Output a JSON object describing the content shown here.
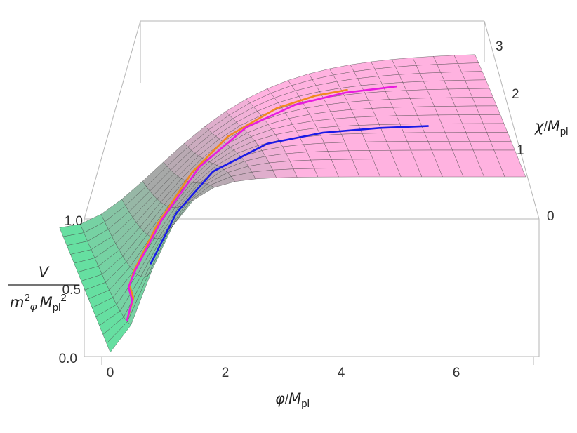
{
  "chart_data": {
    "type": "surface3d",
    "x_axis": {
      "var": "φ",
      "unit_main": "M",
      "unit_sub": "pl",
      "ticks": [
        "0",
        "2",
        "4",
        "6"
      ],
      "tick_values": [
        0,
        2,
        4,
        6
      ],
      "range": [
        0,
        7.2
      ]
    },
    "y_axis": {
      "var": "χ",
      "unit_main": "M",
      "unit_sub": "pl",
      "ticks": [
        "0",
        "1",
        "2",
        "3"
      ],
      "tick_values": [
        0,
        1,
        2,
        3
      ],
      "range": [
        -0.3,
        3.4
      ]
    },
    "z_axis": {
      "num_var": "V",
      "den_m": "m",
      "den_m_sup": "2",
      "den_phi": "φ",
      "den_M": "M",
      "den_pl": "pl",
      "den_sup": "2",
      "ticks": [
        "0.0",
        "0.5",
        "1.0"
      ],
      "tick_values": [
        0.0,
        0.5,
        1.0
      ],
      "range": [
        0,
        1.25
      ]
    },
    "surface": {
      "description_formula": "V = tanh(phi/c)^2 with c = 1 + 0.45*chi",
      "mesh_phi_steps": 20,
      "mesh_chi_steps": 14,
      "color_low": "#5ee6a0",
      "color_mid": "#a8a8a8",
      "color_high": "#ffb2e0",
      "mesh_color": "#444444"
    },
    "trajectories": [
      {
        "color": "#1a1ae6",
        "points": [
          [
            0.8,
            0.1
          ],
          [
            1.3,
            0.35
          ],
          [
            2.0,
            0.62
          ],
          [
            3.0,
            0.88
          ],
          [
            4.0,
            1.02
          ],
          [
            5.0,
            1.1
          ],
          [
            5.85,
            1.14
          ]
        ]
      },
      {
        "color": "#f08a1e",
        "points": [
          [
            0.35,
            -0.05
          ],
          [
            0.52,
            0.2
          ],
          [
            0.55,
            0.45
          ],
          [
            0.58,
            0.75
          ],
          [
            0.72,
            0.95
          ],
          [
            1.2,
            1.3
          ],
          [
            1.9,
            1.72
          ],
          [
            2.6,
            2.05
          ],
          [
            3.5,
            2.28
          ],
          [
            4.2,
            2.38
          ],
          [
            4.75,
            2.42
          ]
        ]
      },
      {
        "color": "#e81cde",
        "points": [
          [
            0.35,
            -0.05
          ],
          [
            0.5,
            0.2
          ],
          [
            0.53,
            0.45
          ],
          [
            0.56,
            0.72
          ],
          [
            0.72,
            0.9
          ],
          [
            1.25,
            1.22
          ],
          [
            2.0,
            1.62
          ],
          [
            2.9,
            1.98
          ],
          [
            3.8,
            2.2
          ],
          [
            4.7,
            2.33
          ],
          [
            5.6,
            2.4
          ]
        ]
      }
    ]
  }
}
